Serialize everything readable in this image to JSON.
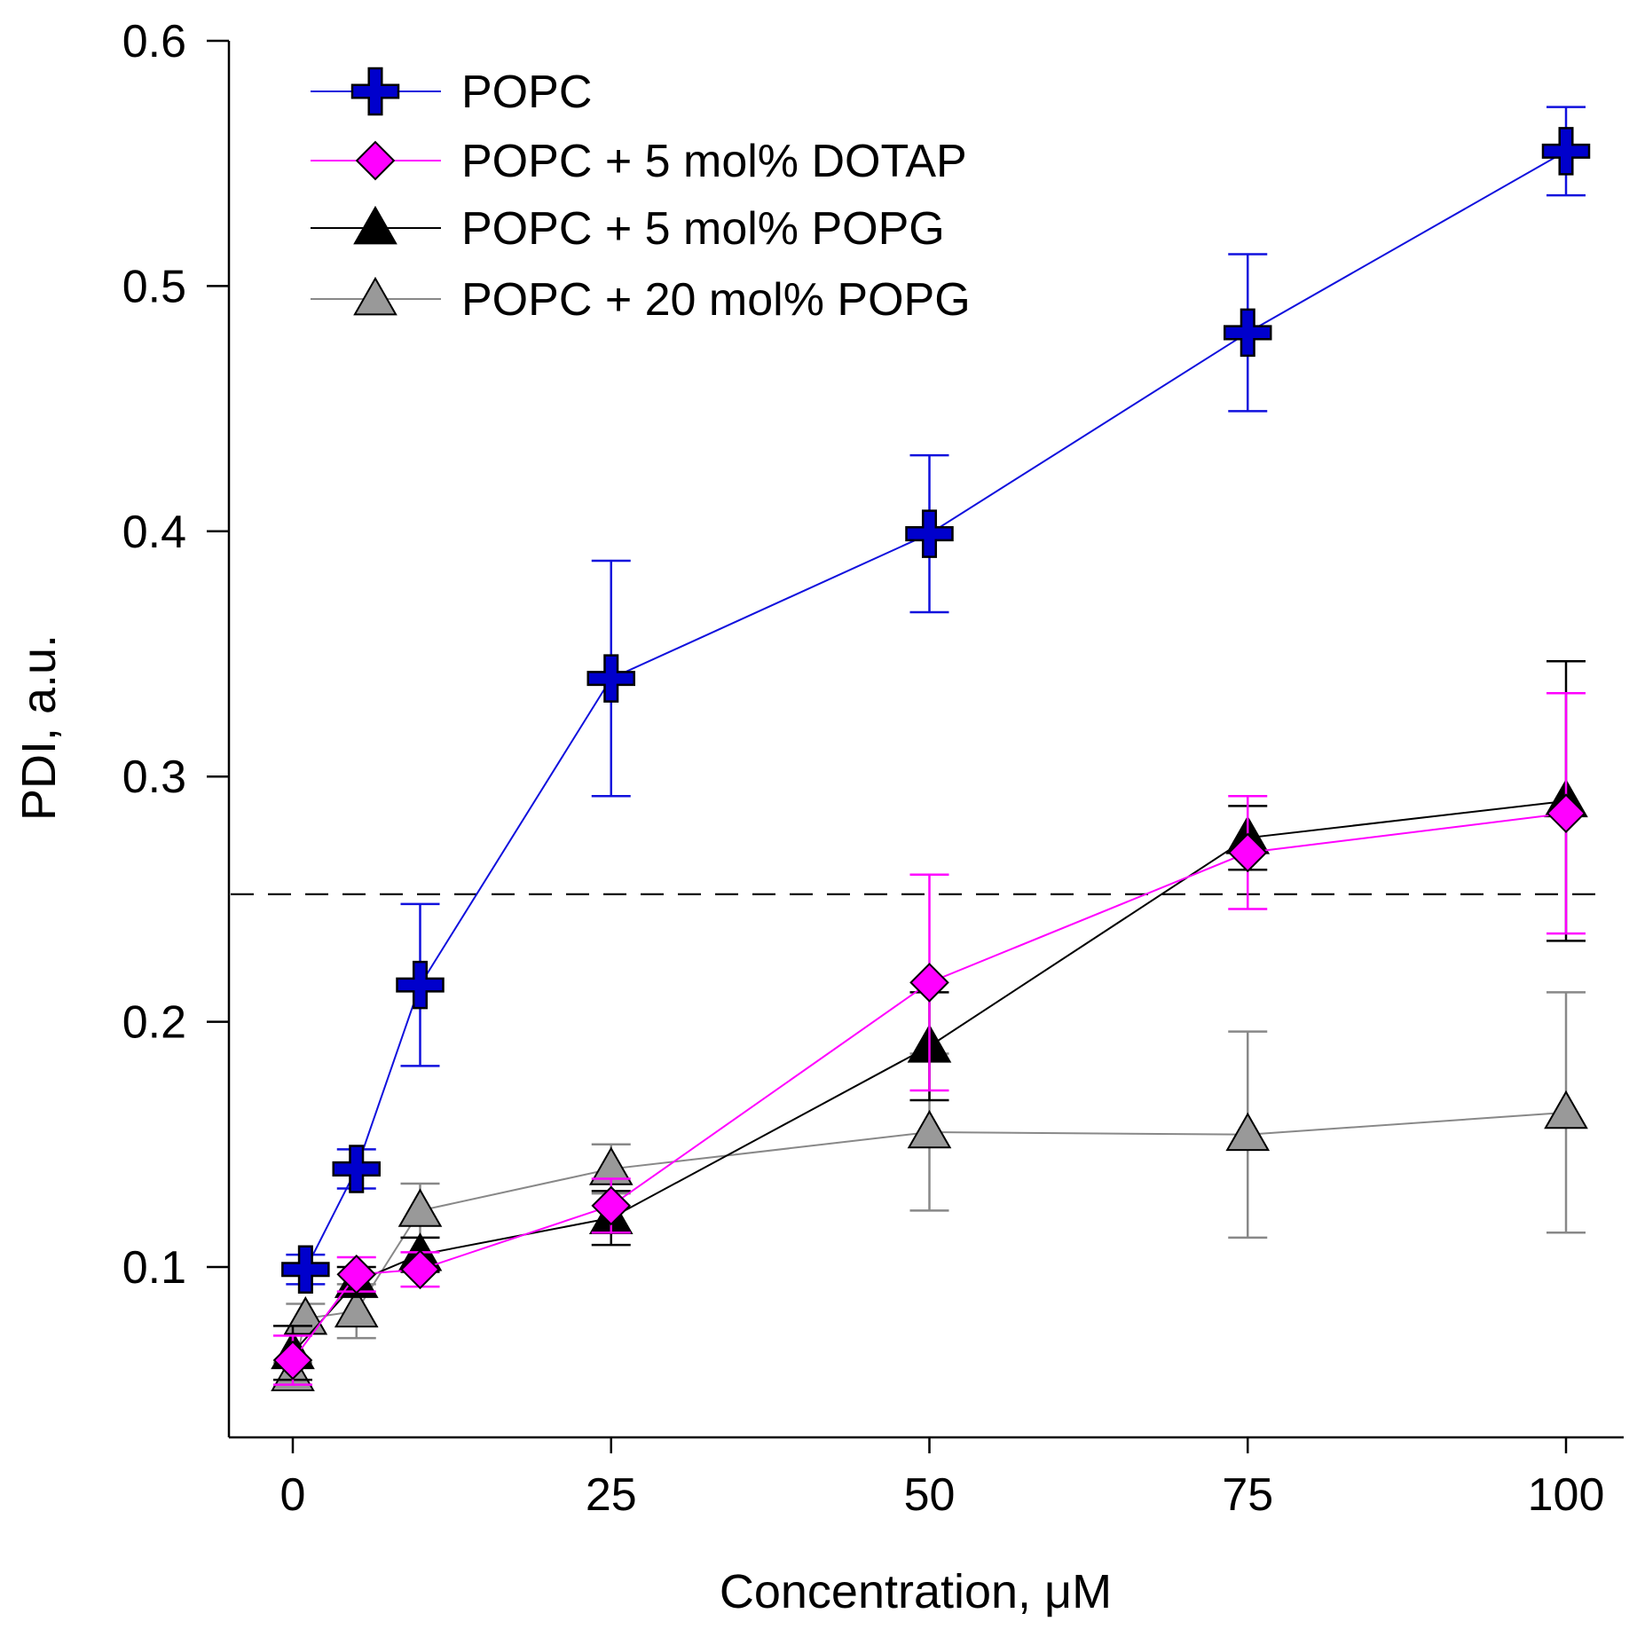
{
  "chart_data": {
    "type": "line",
    "title": "",
    "xlabel": "Concentration, μM",
    "ylabel": "PDI, a.u.",
    "xlim": [
      -5,
      105
    ],
    "ylim": [
      0.03,
      0.6
    ],
    "x_ticks": [
      0,
      25,
      50,
      75,
      100
    ],
    "x_tick_labels": [
      "0",
      "25",
      "50",
      "75",
      "100"
    ],
    "y_ticks": [
      0.1,
      0.2,
      0.3,
      0.4,
      0.5,
      0.6
    ],
    "y_tick_labels": [
      "0.1",
      "0.2",
      "0.3",
      "0.4",
      "0.5",
      "0.6"
    ],
    "grid": false,
    "legend_position": "top-left",
    "reference_line": {
      "y": 0.252,
      "style": "dashed",
      "color": "#000000"
    },
    "series": [
      {
        "name": "POPC",
        "color": "#1010dd",
        "marker": "plus",
        "marker_fill": "#0000cc",
        "x": [
          1,
          5,
          10,
          25,
          50,
          75,
          100
        ],
        "y": [
          0.099,
          0.14,
          0.215,
          0.34,
          0.399,
          0.481,
          0.555
        ],
        "err": [
          0.006,
          0.008,
          0.033,
          0.048,
          0.032,
          0.032,
          0.018
        ]
      },
      {
        "name": "POPC + 5 mol% DOTAP",
        "color": "#ff00ff",
        "marker": "diamond",
        "marker_fill": "#ff00ff",
        "x": [
          0,
          5,
          10,
          25,
          50,
          75,
          100
        ],
        "y": [
          0.062,
          0.097,
          0.099,
          0.125,
          0.216,
          0.269,
          0.285
        ],
        "err": [
          0.01,
          0.007,
          0.007,
          0.011,
          0.044,
          0.023,
          0.049
        ]
      },
      {
        "name": "POPC + 5 mol% POPG",
        "color": "#000000",
        "marker": "triangle",
        "marker_fill": "#000000",
        "x": [
          0,
          5,
          10,
          25,
          50,
          75,
          100
        ],
        "y": [
          0.065,
          0.094,
          0.105,
          0.12,
          0.19,
          0.275,
          0.29
        ],
        "err": [
          0.011,
          0.006,
          0.007,
          0.011,
          0.022,
          0.013,
          0.057
        ]
      },
      {
        "name": "POPC + 20 mol% POPG",
        "color": "#888888",
        "marker": "triangle",
        "marker_fill": "#999999",
        "x": [
          0,
          1,
          5,
          10,
          25,
          50,
          75,
          100
        ],
        "y": [
          0.056,
          0.079,
          0.082,
          0.123,
          0.14,
          0.155,
          0.154,
          0.163
        ],
        "err": [
          0.005,
          0.006,
          0.011,
          0.011,
          0.01,
          0.032,
          0.042,
          0.049
        ]
      }
    ]
  }
}
